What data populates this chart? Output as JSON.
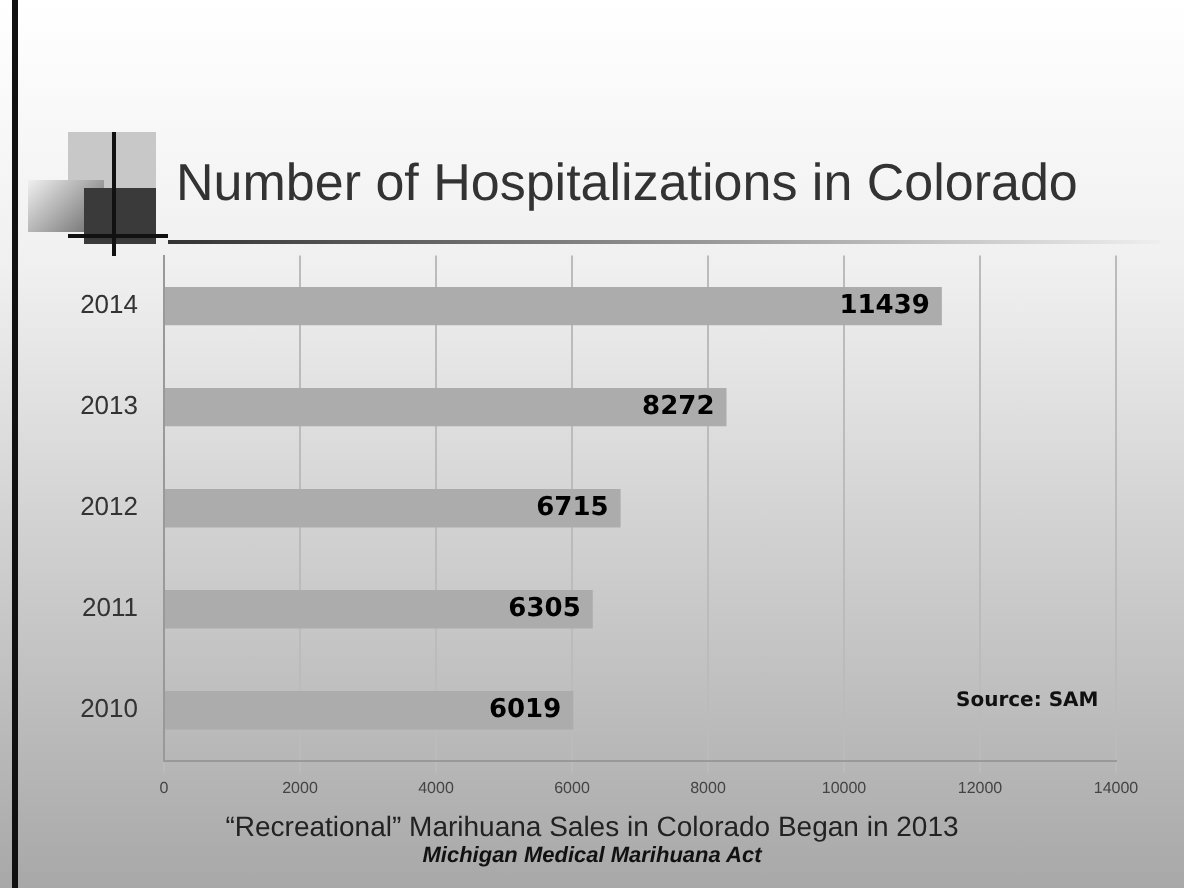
{
  "chart_data": {
    "type": "bar",
    "orientation": "horizontal",
    "title": "Number of Hospitalizations in Colorado",
    "categories": [
      "2014",
      "2013",
      "2012",
      "2011",
      "2010"
    ],
    "values": [
      11439,
      8272,
      6715,
      6305,
      6019
    ],
    "color": "#acacac",
    "xlim": [
      0,
      14000
    ],
    "xticks": [
      0,
      2000,
      4000,
      6000,
      8000,
      10000,
      12000,
      14000
    ],
    "grid": "x",
    "data_labels": true,
    "legend": false,
    "annotations": [
      "Source: SAM",
      "“Recreational” Marihuana Sales in Colorado Began in 2013",
      "Michigan Medical Marihuana Act"
    ]
  }
}
